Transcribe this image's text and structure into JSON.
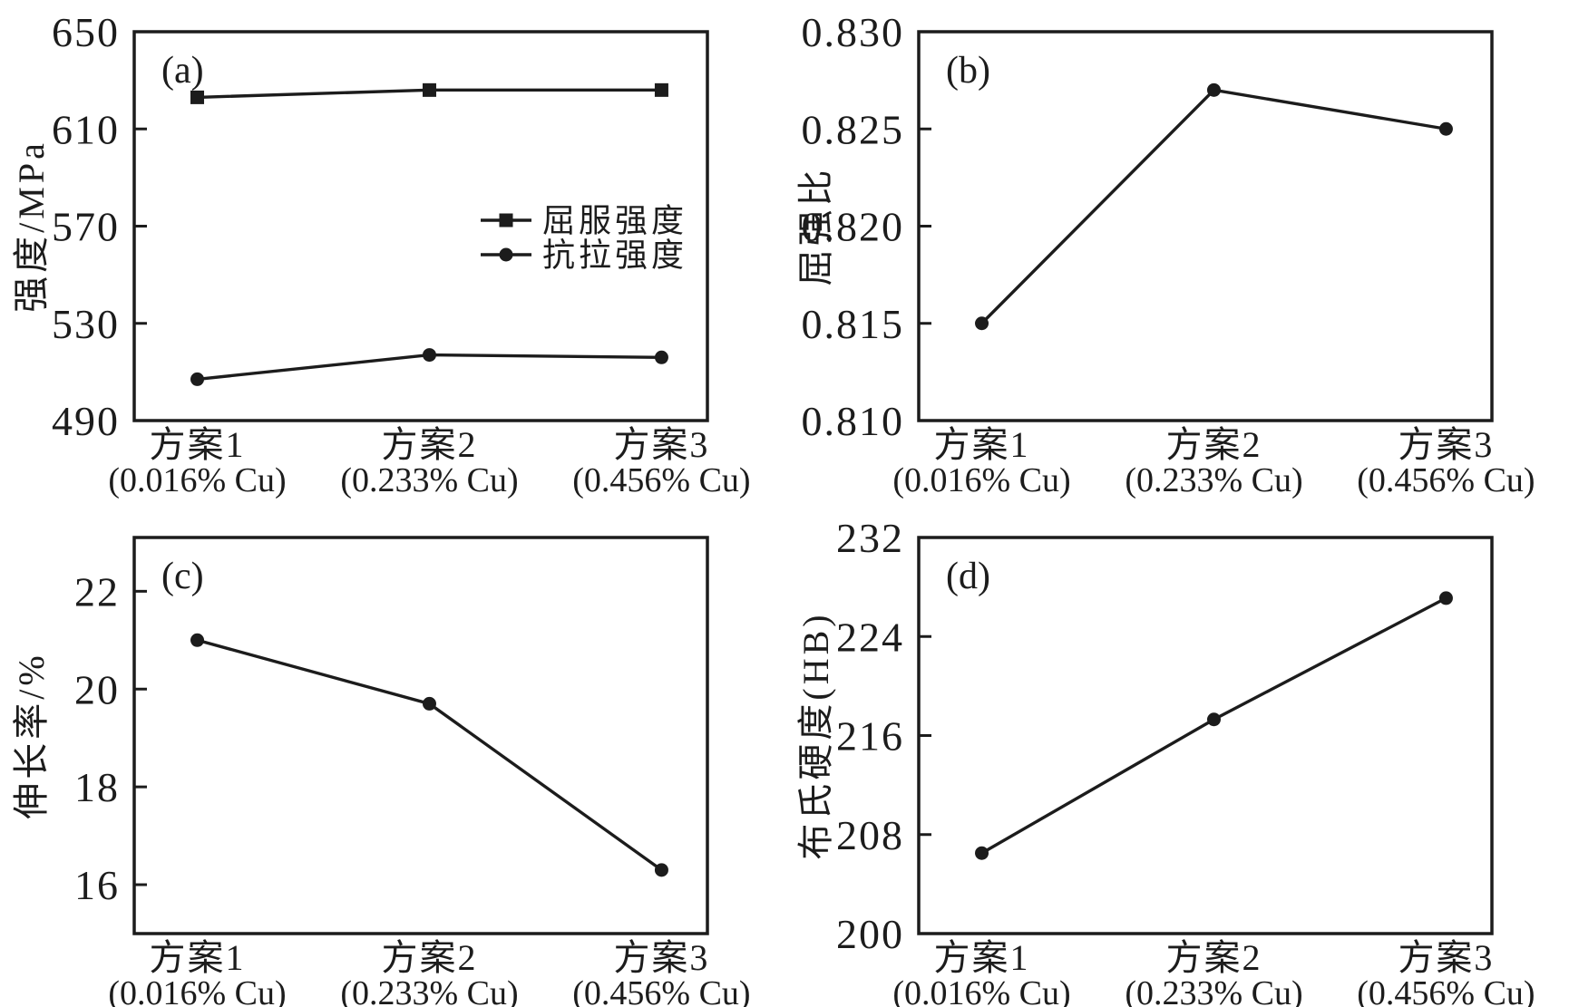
{
  "figure": {
    "background_color": "#ffffff",
    "ink_color": "#1c1c1c",
    "description_labels": {
      "panel_tags": [
        "(a)",
        "(b)",
        "(c)",
        "(d)"
      ]
    }
  },
  "chart_data": [
    {
      "panel": "(a)",
      "type": "line",
      "ylabel": "强度/MPa",
      "xlabel": "",
      "categories": [
        "方案1",
        "方案2",
        "方案3"
      ],
      "category_sublabels": [
        "(0.016% Cu)",
        "(0.233% Cu)",
        "(0.456% Cu)"
      ],
      "ylim": [
        490,
        650
      ],
      "ytick_values": [
        490,
        530,
        570,
        610,
        650
      ],
      "ytick_labels": [
        "490",
        "530",
        "570",
        "610",
        "650"
      ],
      "grid": false,
      "legend_position": "inside-right-middle",
      "series": [
        {
          "name": "屈服强度",
          "marker": "square",
          "values": [
            623,
            626,
            626
          ]
        },
        {
          "name": "抗拉强度",
          "marker": "circle",
          "values": [
            507,
            517,
            516
          ]
        }
      ]
    },
    {
      "panel": "(b)",
      "type": "line",
      "ylabel": "屈强比",
      "xlabel": "",
      "categories": [
        "方案1",
        "方案2",
        "方案3"
      ],
      "category_sublabels": [
        "(0.016% Cu)",
        "(0.233% Cu)",
        "(0.456% Cu)"
      ],
      "ylim": [
        0.81,
        0.83
      ],
      "ytick_values": [
        0.81,
        0.815,
        0.82,
        0.825,
        0.83
      ],
      "ytick_labels": [
        "0.810",
        "0.815",
        "0.820",
        "0.825",
        "0.830"
      ],
      "grid": false,
      "legend_position": "none",
      "series": [
        {
          "name": "屈强比",
          "marker": "circle",
          "values": [
            0.815,
            0.827,
            0.825
          ]
        }
      ]
    },
    {
      "panel": "(c)",
      "type": "line",
      "ylabel": "伸长率/%",
      "xlabel": "",
      "categories": [
        "方案1",
        "方案2",
        "方案3"
      ],
      "category_sublabels": [
        "(0.016% Cu)",
        "(0.233% Cu)",
        "(0.456% Cu)"
      ],
      "ylim": [
        15.0,
        23.1
      ],
      "ytick_values": [
        16,
        18,
        20,
        22
      ],
      "ytick_labels": [
        "16",
        "18",
        "20",
        "22"
      ],
      "grid": false,
      "legend_position": "none",
      "series": [
        {
          "name": "伸长率",
          "marker": "circle",
          "values": [
            21.0,
            19.7,
            16.3
          ]
        }
      ]
    },
    {
      "panel": "(d)",
      "type": "line",
      "ylabel": "布氏硬度(HB)",
      "xlabel": "",
      "categories": [
        "方案1",
        "方案2",
        "方案3"
      ],
      "category_sublabels": [
        "(0.016% Cu)",
        "(0.233% Cu)",
        "(0.456% Cu)"
      ],
      "ylim": [
        200,
        232
      ],
      "ytick_values": [
        200,
        208,
        216,
        224,
        232
      ],
      "ytick_labels": [
        "200",
        "208",
        "216",
        "224",
        "232"
      ],
      "grid": false,
      "legend_position": "none",
      "series": [
        {
          "name": "布氏硬度",
          "marker": "circle",
          "values": [
            206.5,
            217.3,
            227.1
          ]
        }
      ]
    }
  ]
}
